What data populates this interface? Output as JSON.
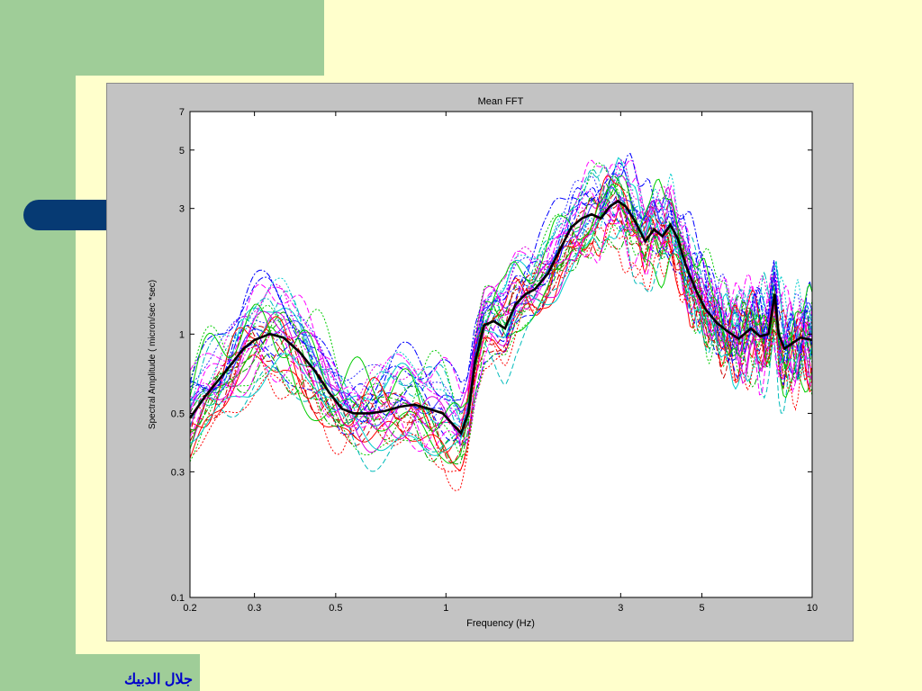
{
  "footer_text": "جلال الدبيك",
  "chart_data": {
    "type": "line",
    "title": "Mean FFT",
    "xlabel": "Frequency (Hz)",
    "ylabel": "Spectral Amplitude  ( micron/sec *sec)",
    "x_scale": "log",
    "y_scale": "log",
    "xlim": [
      0.2,
      10
    ],
    "ylim": [
      0.1,
      7
    ],
    "x_ticks": [
      0.2,
      0.3,
      0.5,
      1,
      3,
      5,
      10
    ],
    "x_tick_labels": [
      "0.2",
      "0.3",
      "0.5",
      "1",
      "3",
      "5",
      "10"
    ],
    "y_ticks": [
      0.1,
      0.3,
      0.5,
      1,
      3,
      5,
      7
    ],
    "y_tick_labels": [
      "0.1",
      "0.3",
      "0.5",
      "1",
      "3",
      "5",
      "7"
    ],
    "grid": false,
    "mean_curve": {
      "color": "#000000",
      "x": [
        0.2,
        0.22,
        0.25,
        0.28,
        0.3,
        0.33,
        0.36,
        0.4,
        0.44,
        0.48,
        0.52,
        0.56,
        0.62,
        0.68,
        0.75,
        0.82,
        0.9,
        0.98,
        1.05,
        1.1,
        1.15,
        1.2,
        1.27,
        1.35,
        1.45,
        1.55,
        1.65,
        1.75,
        1.9,
        2.05,
        2.2,
        2.35,
        2.5,
        2.65,
        2.8,
        2.95,
        3.1,
        3.3,
        3.5,
        3.7,
        3.9,
        4.1,
        4.3,
        4.5,
        4.8,
        5.1,
        5.5,
        5.9,
        6.3,
        6.8,
        7.2,
        7.6,
        7.9,
        8.1,
        8.4,
        8.8,
        9.3,
        10
      ],
      "y": [
        0.48,
        0.58,
        0.72,
        0.88,
        0.95,
        1.0,
        0.97,
        0.85,
        0.72,
        0.6,
        0.52,
        0.5,
        0.5,
        0.51,
        0.53,
        0.54,
        0.52,
        0.5,
        0.45,
        0.42,
        0.5,
        0.78,
        1.08,
        1.12,
        1.05,
        1.3,
        1.42,
        1.48,
        1.7,
        2.1,
        2.55,
        2.75,
        2.85,
        2.75,
        3.05,
        3.2,
        3.05,
        2.65,
        2.25,
        2.5,
        2.35,
        2.6,
        2.3,
        1.85,
        1.48,
        1.25,
        1.1,
        1.02,
        0.96,
        1.05,
        0.98,
        1.0,
        1.42,
        1.0,
        0.88,
        0.92,
        0.97,
        0.95
      ]
    },
    "records": {
      "count": 34,
      "colors": [
        "#ff0000",
        "#0000ff",
        "#00cc00",
        "#ff00ff",
        "#00cccc",
        "#cc0000",
        "#3333ff",
        "#00aa00",
        "#dd00dd",
        "#00bbbb"
      ]
    }
  }
}
